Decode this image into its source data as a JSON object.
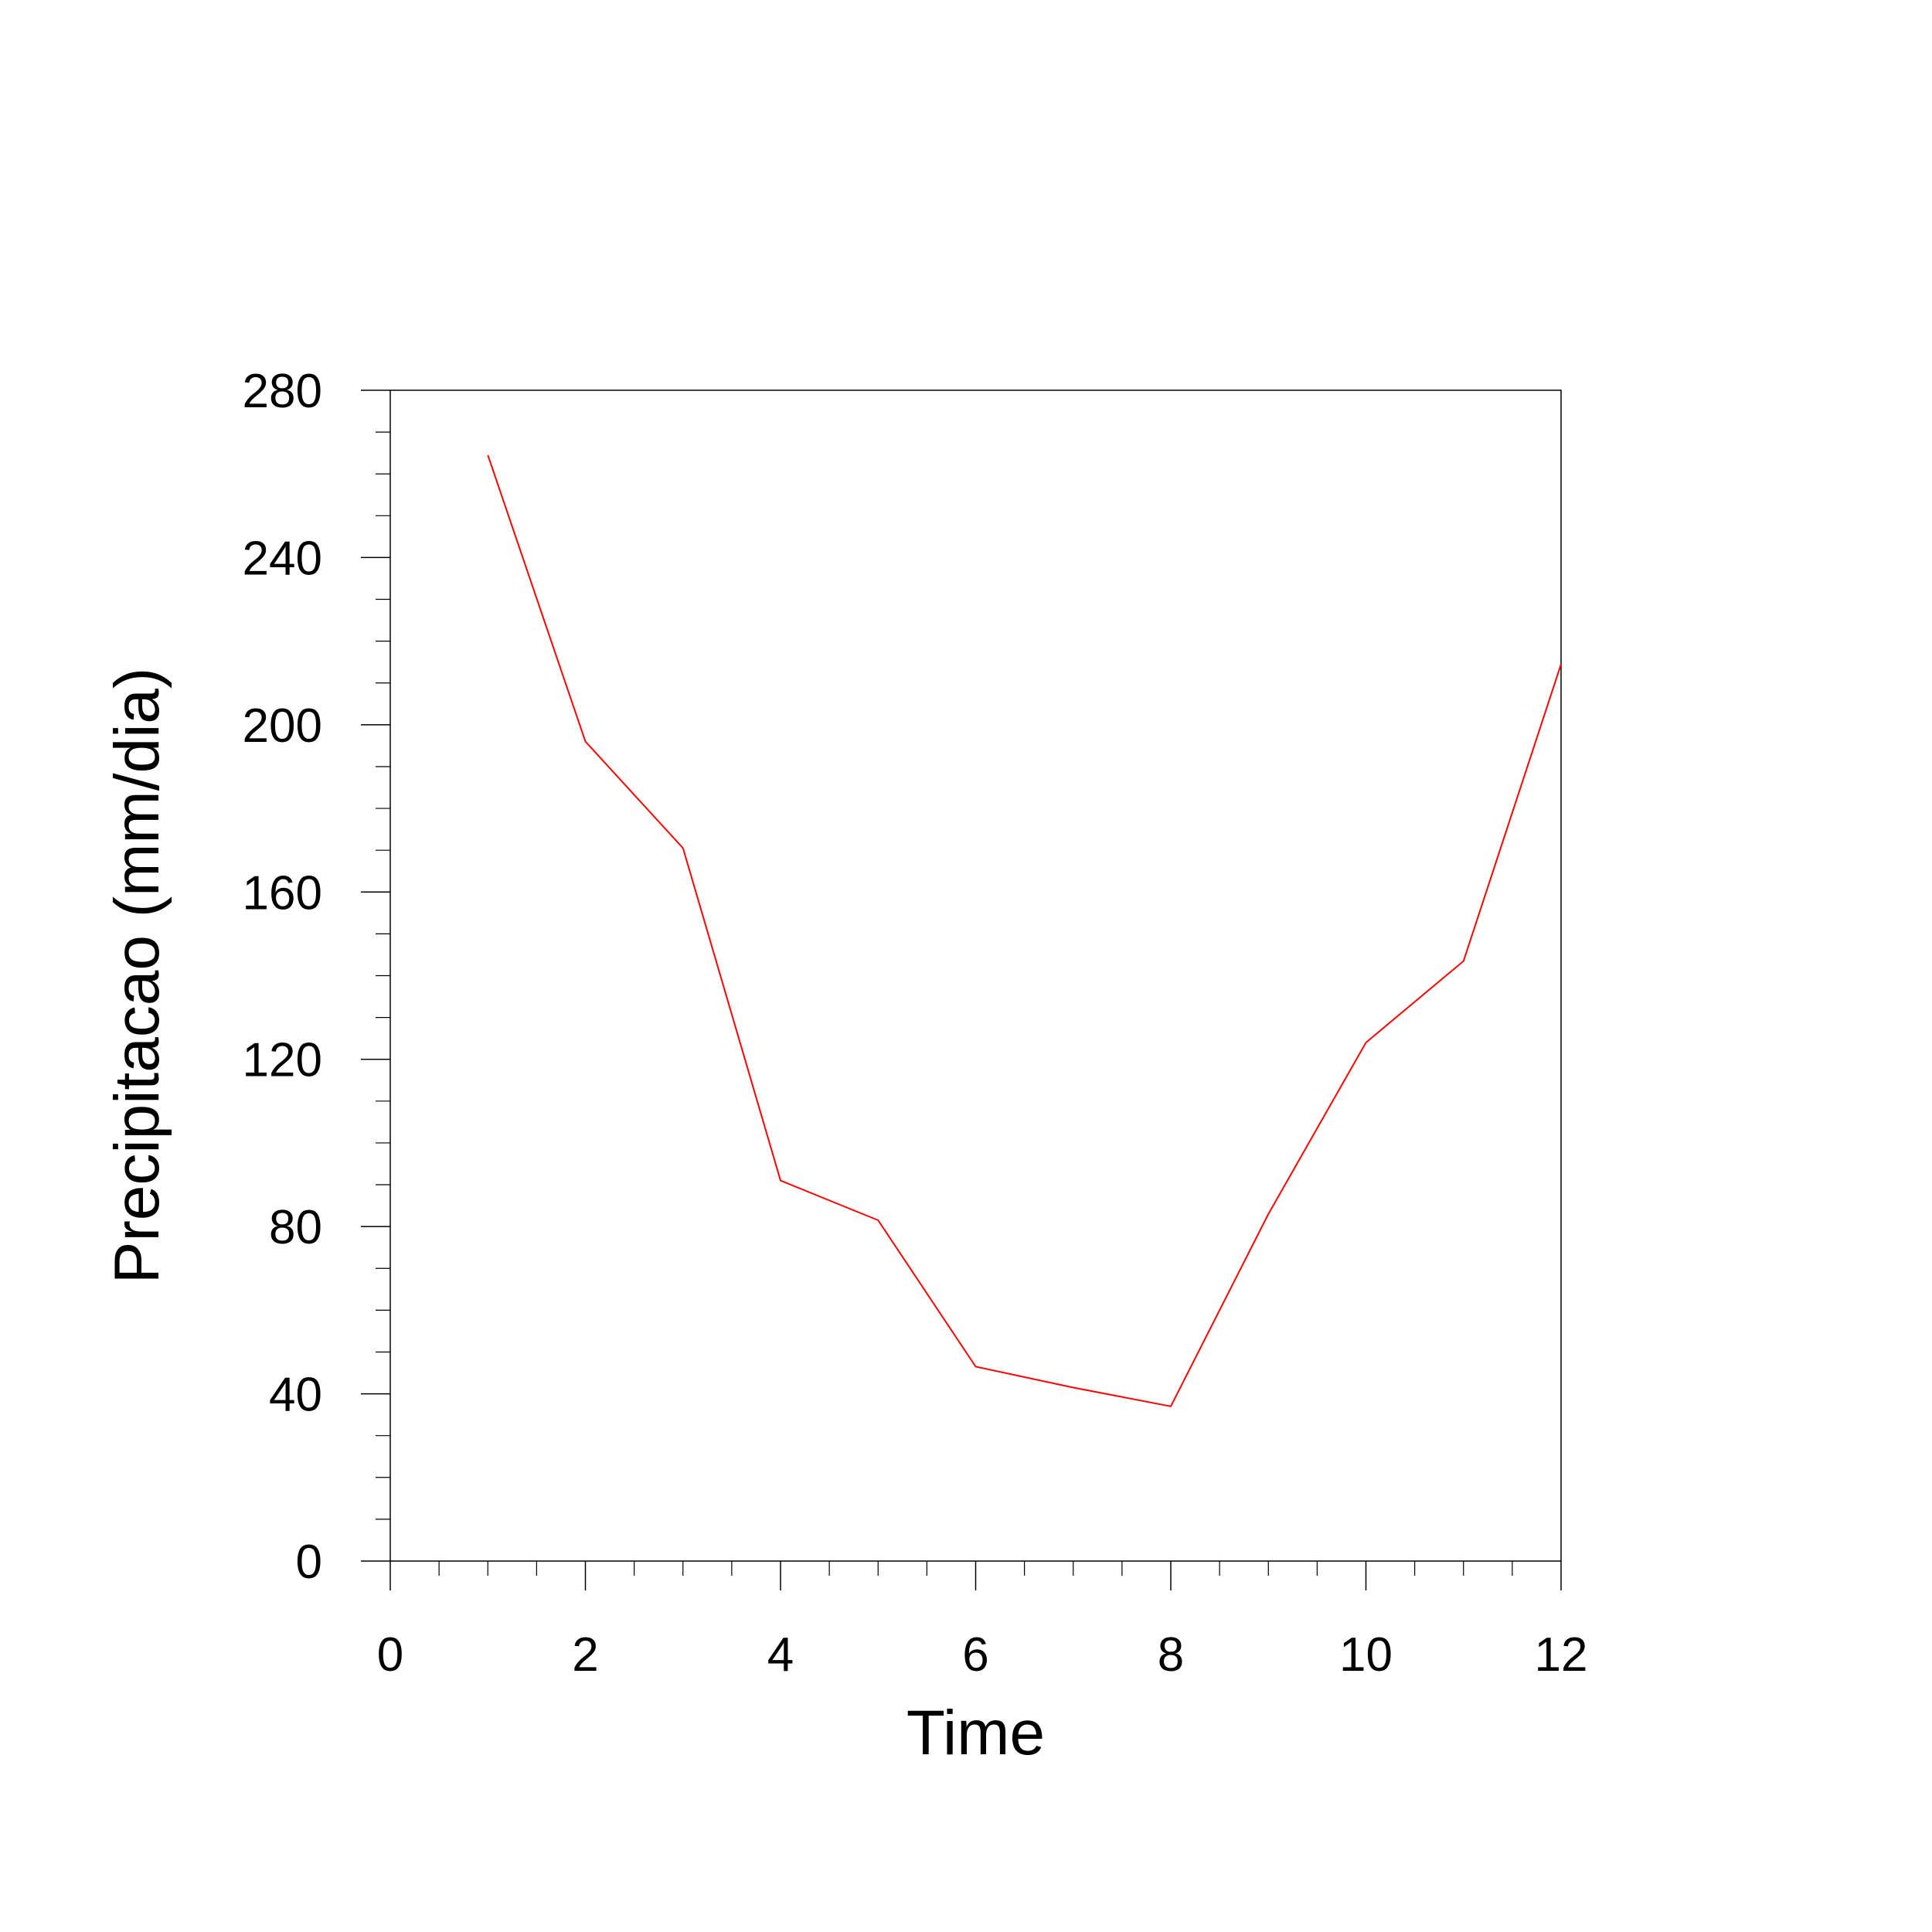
{
  "chart_data": {
    "type": "line",
    "title": "",
    "xlabel": "Time",
    "ylabel": "Precipitacao (mm/dia)",
    "xlim": [
      0,
      12
    ],
    "ylim": [
      0,
      280
    ],
    "x_ticks": [
      0,
      2,
      4,
      6,
      8,
      10,
      12
    ],
    "y_ticks": [
      0,
      40,
      80,
      120,
      160,
      200,
      240,
      280
    ],
    "x_minor_step": 0.5,
    "y_minor_step": 10,
    "grid": false,
    "legend": "none",
    "series": [
      {
        "color": "#ff0000",
        "x": [
          1,
          2,
          3,
          4,
          5,
          6,
          7,
          8,
          9,
          10,
          11,
          12
        ],
        "y": [
          264.5,
          196,
          170.5,
          91,
          81.5,
          46.5,
          41.5,
          37,
          83,
          124,
          143.5,
          214.5
        ]
      }
    ]
  }
}
